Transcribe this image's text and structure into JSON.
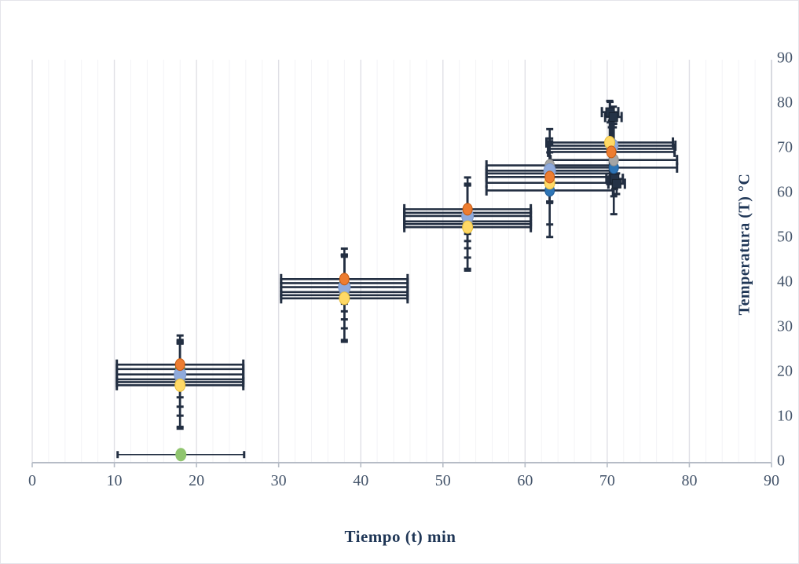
{
  "chart_data": {
    "type": "scatter",
    "title": "",
    "xlabel": "Tiempo (t) min",
    "ylabel": "Temperatura (T)  °C",
    "xlim": [
      0,
      90
    ],
    "ylim": [
      0,
      90
    ],
    "x_ticks": [
      0,
      10,
      20,
      30,
      40,
      50,
      60,
      70,
      80,
      90
    ],
    "y_ticks": [
      0,
      10,
      20,
      30,
      40,
      50,
      60,
      70,
      80,
      90
    ],
    "y_axis_side": "right",
    "grid": {
      "minor_step": 2,
      "major_step": 10,
      "horizontal": false
    },
    "colors": {
      "minor_grid": "#f3f3f6",
      "major_grid": "#e0e0e6",
      "axis_line": "#b6bcc6",
      "right_axis_line": "#ccd0d8",
      "tick_label": "#44546a",
      "error_bar": "#232f42"
    },
    "series": [
      {
        "name": "serie-naranja",
        "marker": "circle",
        "color": "#ED7D31",
        "stroke": "#c55a11",
        "size": 12,
        "xerr": 7.7,
        "yerr": 5.5,
        "points": [
          [
            18,
            21.9
          ],
          [
            38,
            41.0
          ],
          [
            53,
            56.6
          ],
          [
            63,
            63.8
          ],
          [
            70.5,
            69.4
          ]
        ]
      },
      {
        "name": "serie-verde",
        "marker": "circle",
        "color": "#70AD47",
        "stroke": "#538135",
        "size": 12,
        "xerr": 7.7,
        "yerr": 6.3,
        "points": [
          [
            18,
            20.9
          ],
          [
            38,
            40.1
          ],
          [
            53,
            55.8
          ],
          [
            63,
            64.6
          ],
          [
            70.5,
            70.1
          ]
        ]
      },
      {
        "name": "serie-azul-claro",
        "marker": "circle",
        "color": "#8FAADC",
        "stroke": "#7c99cc",
        "size": 15,
        "xerr": 7.7,
        "yerr": 7.2,
        "points": [
          [
            18,
            19.7
          ],
          [
            38,
            39.2
          ],
          [
            53,
            55.1
          ],
          [
            63,
            65.2
          ],
          [
            70.6,
            70.8
          ]
        ]
      },
      {
        "name": "serie-gris",
        "marker": "circle",
        "color": "#A5A5A5",
        "stroke": "#8c8c8c",
        "size": 12,
        "xerr": 7.7,
        "yerr": 8.1,
        "points": [
          [
            18,
            18.6
          ],
          [
            38,
            38.1
          ],
          [
            53,
            53.9
          ],
          [
            63,
            66.4
          ],
          [
            70.8,
            67.6
          ]
        ]
      },
      {
        "name": "serie-amarilla",
        "marker": "circle",
        "color": "#FFD966",
        "stroke": "#e6bc3c",
        "size": 13,
        "xerr": 7.7,
        "yerr": 9.3,
        "points": [
          [
            18,
            17.3
          ],
          [
            38,
            36.7
          ],
          [
            53,
            52.6
          ],
          [
            63,
            62.5
          ],
          [
            70.3,
            71.5
          ]
        ]
      },
      {
        "name": "serie-azul",
        "marker": "circle",
        "color": "#2E75B6",
        "stroke": "#1f5a94",
        "size": 12,
        "xerr": 7.7,
        "yerr": 10.4,
        "points": [
          [
            18,
            18.0
          ],
          [
            38,
            37.4
          ],
          [
            53,
            53.3
          ],
          [
            63,
            60.8
          ],
          [
            70.8,
            65.9
          ]
        ]
      },
      {
        "name": "serie-cuadros-navy",
        "marker": "square",
        "color": "#243246",
        "stroke": "#18222f",
        "size": 11,
        "xerr": 1.0,
        "yerr": 2.3,
        "points": [
          [
            70.35,
            78.3
          ],
          [
            70.75,
            77.2
          ],
          [
            70.9,
            63.4
          ],
          [
            71.15,
            62.3
          ]
        ]
      },
      {
        "name": "serie-verde-base",
        "marker": "circle",
        "color": "#90C56F",
        "stroke": "#90C56F",
        "size": 13,
        "xerr": 7.7,
        "yerr": 0,
        "thin": true,
        "points": [
          [
            18.1,
            1.8
          ]
        ]
      }
    ]
  }
}
